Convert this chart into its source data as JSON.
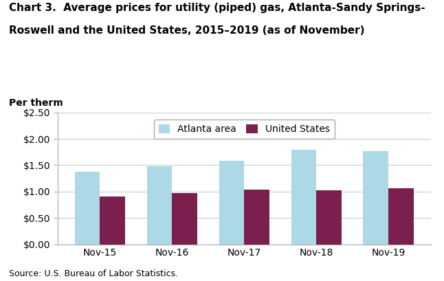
{
  "title_line1": "Chart 3.  Average prices for utility (piped) gas, Atlanta-Sandy Springs-",
  "title_line2": "Roswell and the United States, 2015–2019 (as of November)",
  "ylabel": "Per therm",
  "source": "Source: U.S. Bureau of Labor Statistics.",
  "categories": [
    "Nov-15",
    "Nov-16",
    "Nov-17",
    "Nov-18",
    "Nov-19"
  ],
  "atlanta_values": [
    1.38,
    1.48,
    1.59,
    1.79,
    1.77
  ],
  "us_values": [
    0.91,
    0.97,
    1.04,
    1.03,
    1.07
  ],
  "atlanta_color": "#add8e6",
  "us_color": "#7b1f4e",
  "ylim": [
    0,
    2.5
  ],
  "yticks": [
    0.0,
    0.5,
    1.0,
    1.5,
    2.0,
    2.5
  ],
  "legend_labels": [
    "Atlanta area",
    "United States"
  ],
  "bar_width": 0.35,
  "background_color": "#ffffff",
  "plot_bg_color": "#ffffff",
  "title_fontsize": 11,
  "axis_label_fontsize": 10,
  "tick_fontsize": 10,
  "legend_fontsize": 10,
  "source_fontsize": 9
}
